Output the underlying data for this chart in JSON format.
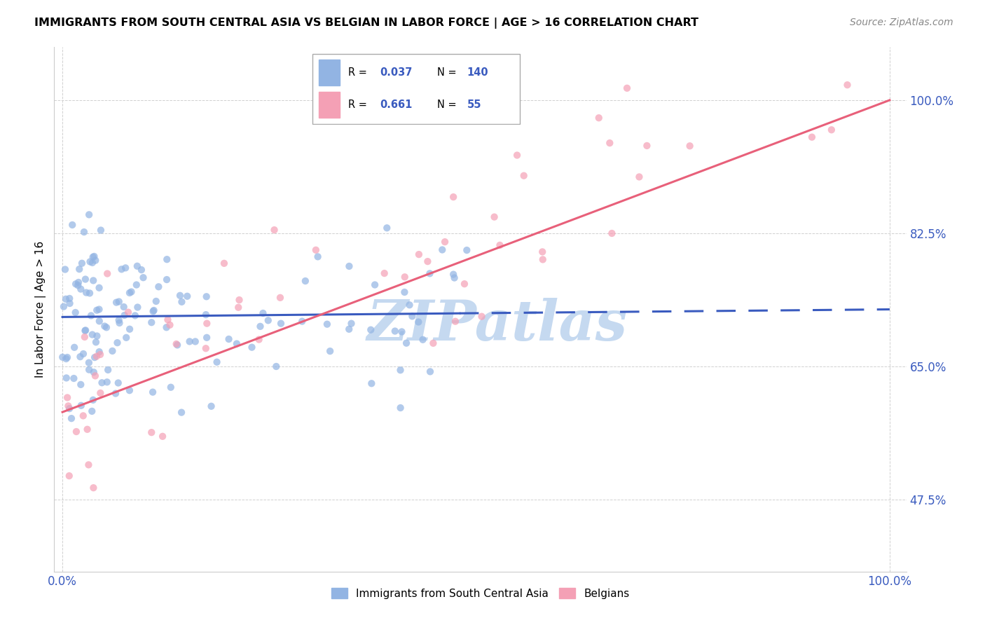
{
  "title": "IMMIGRANTS FROM SOUTH CENTRAL ASIA VS BELGIAN IN LABOR FORCE | AGE > 16 CORRELATION CHART",
  "source": "Source: ZipAtlas.com",
  "ylabel": "In Labor Force | Age > 16",
  "yticks": [
    0.475,
    0.65,
    0.825,
    1.0
  ],
  "ytick_labels": [
    "47.5%",
    "65.0%",
    "82.5%",
    "100.0%"
  ],
  "xlim": [
    -0.01,
    1.02
  ],
  "ylim": [
    0.38,
    1.07
  ],
  "legend_labels_bottom": [
    "Immigrants from South Central Asia",
    "Belgians"
  ],
  "blue_color": "#92b4e3",
  "pink_color": "#f4a0b5",
  "blue_line_color": "#3a5bbf",
  "pink_line_color": "#e8607a",
  "blue_R": 0.037,
  "blue_N": 140,
  "pink_R": 0.661,
  "pink_N": 55,
  "blue_line_x": [
    0.0,
    0.5,
    1.0
  ],
  "blue_line_y_solid_end": 0.5,
  "blue_intercept": 0.715,
  "blue_slope": 0.01,
  "pink_intercept": 0.59,
  "pink_slope": 0.41,
  "watermark_text": "ZIPatlas",
  "watermark_color": "#c5d9f0",
  "title_fontsize": 11.5,
  "source_fontsize": 10,
  "tick_fontsize": 12,
  "legend_fontsize": 11,
  "scatter_size": 55,
  "scatter_alpha": 0.7
}
